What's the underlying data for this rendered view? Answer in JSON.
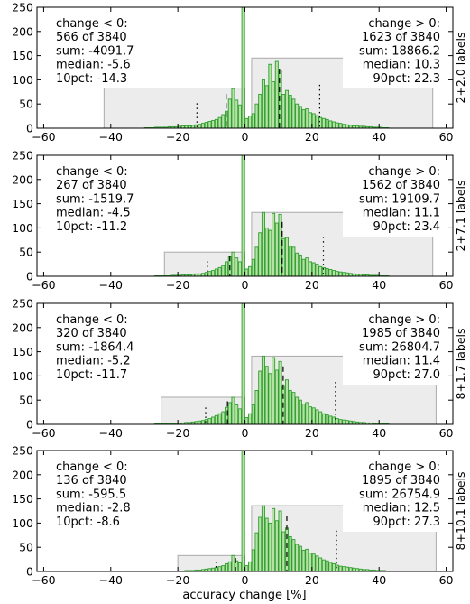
{
  "figure": {
    "xlabel": "accuracy change [%]",
    "xticks": [
      -60,
      -40,
      -20,
      0,
      20,
      40,
      60
    ],
    "yticks": [
      0,
      50,
      100,
      150,
      200,
      250
    ],
    "bar_color": "#b6e2a6",
    "bar_edge": "#2f9e2f",
    "box_fill": "#ececec",
    "box_edge": "#aaaaaa"
  },
  "chart_data": [
    {
      "type": "bar",
      "label": "2+2.0 labels",
      "xlim": [
        -62,
        62
      ],
      "ylim": [
        0,
        250
      ],
      "negative": {
        "lines": [
          "change < 0:",
          "566 of 3840",
          "sum: -4091.7",
          "median: -5.6",
          "10pct: -14.3"
        ],
        "box_range": [
          -42,
          0
        ],
        "box_height": 83,
        "median": -5.6,
        "pct": -14.3
      },
      "positive": {
        "lines": [
          "change > 0:",
          "1623 of 3840",
          "sum: 18866.2",
          "median: 10.3",
          "90pct: 22.3"
        ],
        "box_range": [
          2,
          56
        ],
        "box_height": 145,
        "median": 10.3,
        "pct": 22.3
      },
      "bins_left": -30,
      "counts": [
        1,
        1,
        1,
        2,
        2,
        2,
        2,
        3,
        3,
        3,
        4,
        5,
        5,
        5,
        6,
        7,
        8,
        10,
        12,
        14,
        16,
        18,
        22,
        28,
        35,
        60,
        82,
        58,
        48,
        250,
        20,
        25,
        30,
        50,
        70,
        100,
        88,
        132,
        96,
        138,
        120,
        70,
        78,
        68,
        60,
        50,
        45,
        38,
        40,
        32,
        30,
        26,
        22,
        20,
        18,
        15,
        13,
        11,
        10,
        8,
        7,
        6,
        5,
        5,
        4,
        4,
        3,
        3,
        2,
        2,
        2,
        1,
        1
      ]
    },
    {
      "type": "bar",
      "label": "2+7.1 labels",
      "xlim": [
        -62,
        62
      ],
      "ylim": [
        0,
        250
      ],
      "negative": {
        "lines": [
          "change < 0:",
          "267 of 3840",
          "sum: -1519.7",
          "median: -4.5",
          "10pct: -11.2"
        ],
        "box_range": [
          -24,
          0
        ],
        "box_height": 50,
        "median": -4.5,
        "pct": -11.2
      },
      "positive": {
        "lines": [
          "change > 0:",
          "1562 of 3840",
          "sum: 19109.7",
          "median: 11.1",
          "90pct: 23.4"
        ],
        "box_range": [
          2,
          56
        ],
        "box_height": 132,
        "median": 11.1,
        "pct": 23.4
      },
      "bins_left": -30,
      "counts": [
        0,
        0,
        0,
        1,
        1,
        1,
        1,
        1,
        2,
        2,
        2,
        3,
        3,
        3,
        4,
        5,
        5,
        6,
        8,
        10,
        12,
        15,
        18,
        22,
        30,
        40,
        50,
        38,
        30,
        250,
        15,
        20,
        35,
        60,
        90,
        132,
        100,
        95,
        130,
        110,
        128,
        78,
        80,
        62,
        60,
        48,
        44,
        35,
        38,
        30,
        28,
        25,
        20,
        18,
        16,
        14,
        12,
        10,
        9,
        8,
        7,
        6,
        5,
        4,
        4,
        3,
        3,
        2,
        2,
        2,
        1,
        1,
        1
      ]
    },
    {
      "type": "bar",
      "label": "8+1.7 labels",
      "xlim": [
        -62,
        62
      ],
      "ylim": [
        0,
        250
      ],
      "negative": {
        "lines": [
          "change < 0:",
          "320 of 3840",
          "sum: -1864.4",
          "median: -5.2",
          "10pct: -11.7"
        ],
        "box_range": [
          -25,
          0
        ],
        "box_height": 56,
        "median": -5.2,
        "pct": -11.7
      },
      "positive": {
        "lines": [
          "change > 0:",
          "1985 of 3840",
          "sum: 26804.7",
          "median: 11.4",
          "90pct: 27.0"
        ],
        "box_range": [
          2,
          57
        ],
        "box_height": 141,
        "median": 11.4,
        "pct": 27.0
      },
      "bins_left": -30,
      "counts": [
        0,
        0,
        0,
        1,
        1,
        1,
        1,
        2,
        2,
        2,
        3,
        3,
        4,
        4,
        5,
        6,
        7,
        8,
        10,
        12,
        15,
        18,
        22,
        26,
        35,
        45,
        56,
        40,
        32,
        250,
        14,
        22,
        40,
        70,
        110,
        141,
        120,
        105,
        138,
        112,
        130,
        80,
        92,
        70,
        66,
        56,
        50,
        42,
        45,
        36,
        34,
        30,
        26,
        22,
        20,
        17,
        15,
        12,
        10,
        9,
        8,
        7,
        6,
        5,
        4,
        4,
        3,
        3,
        2,
        2,
        2,
        1,
        1
      ]
    },
    {
      "type": "bar",
      "label": "8+10.1 labels",
      "xlim": [
        -62,
        62
      ],
      "ylim": [
        0,
        250
      ],
      "negative": {
        "lines": [
          "change < 0:",
          "136 of 3840",
          "sum: -595.5",
          "median: -2.8",
          "10pct: -8.6"
        ],
        "box_range": [
          -20,
          0
        ],
        "box_height": 33,
        "median": -2.8,
        "pct": -8.6
      },
      "positive": {
        "lines": [
          "change > 0:",
          "1895 of 3840",
          "sum: 26754.9",
          "median: 12.5",
          "90pct: 27.3"
        ],
        "box_range": [
          2,
          57
        ],
        "box_height": 136,
        "median": 12.5,
        "pct": 27.3
      },
      "bins_left": -30,
      "counts": [
        0,
        0,
        0,
        0,
        0,
        0,
        0,
        1,
        1,
        1,
        1,
        1,
        2,
        2,
        2,
        3,
        3,
        4,
        5,
        6,
        7,
        8,
        10,
        12,
        16,
        20,
        33,
        22,
        18,
        250,
        12,
        20,
        45,
        80,
        112,
        136,
        110,
        100,
        130,
        105,
        125,
        82,
        90,
        72,
        66,
        56,
        52,
        44,
        46,
        38,
        36,
        32,
        28,
        24,
        22,
        19,
        16,
        13,
        11,
        10,
        9,
        8,
        7,
        6,
        5,
        4,
        4,
        3,
        3,
        2,
        2,
        2,
        1
      ]
    }
  ]
}
